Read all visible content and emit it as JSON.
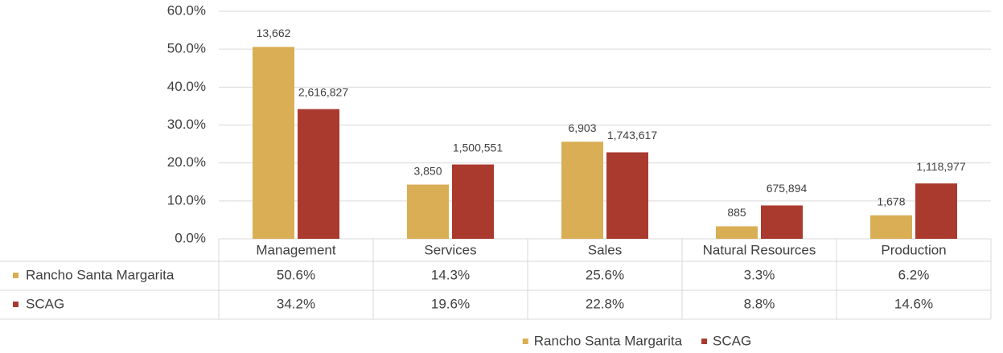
{
  "chart_data": {
    "type": "bar",
    "categories": [
      "Management",
      "Services",
      "Sales",
      "Natural Resources",
      "Production"
    ],
    "series": [
      {
        "name": "Rancho Santa Margarita",
        "color": "#d9ae54",
        "values": [
          50.6,
          14.3,
          25.6,
          3.3,
          6.2
        ],
        "value_labels": [
          "50.6%",
          "14.3%",
          "25.6%",
          "3.3%",
          "6.2%"
        ],
        "counts": [
          {
            "value": 13662,
            "label": "13,662"
          },
          {
            "value": 3850,
            "label": "3,850"
          },
          {
            "value": 6903,
            "label": "6,903"
          },
          {
            "value": 885,
            "label": "885"
          },
          {
            "value": 1678,
            "label": "1,678"
          }
        ]
      },
      {
        "name": "SCAG",
        "color": "#ab3a2e",
        "values": [
          34.2,
          19.6,
          22.8,
          8.8,
          14.6
        ],
        "value_labels": [
          "34.2%",
          "19.6%",
          "22.8%",
          "8.8%",
          "14.6%"
        ],
        "counts": [
          {
            "value": 2616827,
            "label": "2,616,827"
          },
          {
            "value": 1500551,
            "label": "1,500,551"
          },
          {
            "value": 1743617,
            "label": "1,743,617"
          },
          {
            "value": 675894,
            "label": "675,894"
          },
          {
            "value": 1118977,
            "label": "1,118,977"
          }
        ]
      }
    ],
    "ylim": [
      0,
      60
    ],
    "yticks": [
      {
        "value": 0,
        "label": "0.0%"
      },
      {
        "value": 10,
        "label": "10.0%"
      },
      {
        "value": 20,
        "label": "20.0%"
      },
      {
        "value": 30,
        "label": "30.0%"
      },
      {
        "value": 40,
        "label": "40.0%"
      },
      {
        "value": 50,
        "label": "50.0%"
      },
      {
        "value": 60,
        "label": "60.0%"
      }
    ],
    "grid": true,
    "legend": "bottom"
  }
}
